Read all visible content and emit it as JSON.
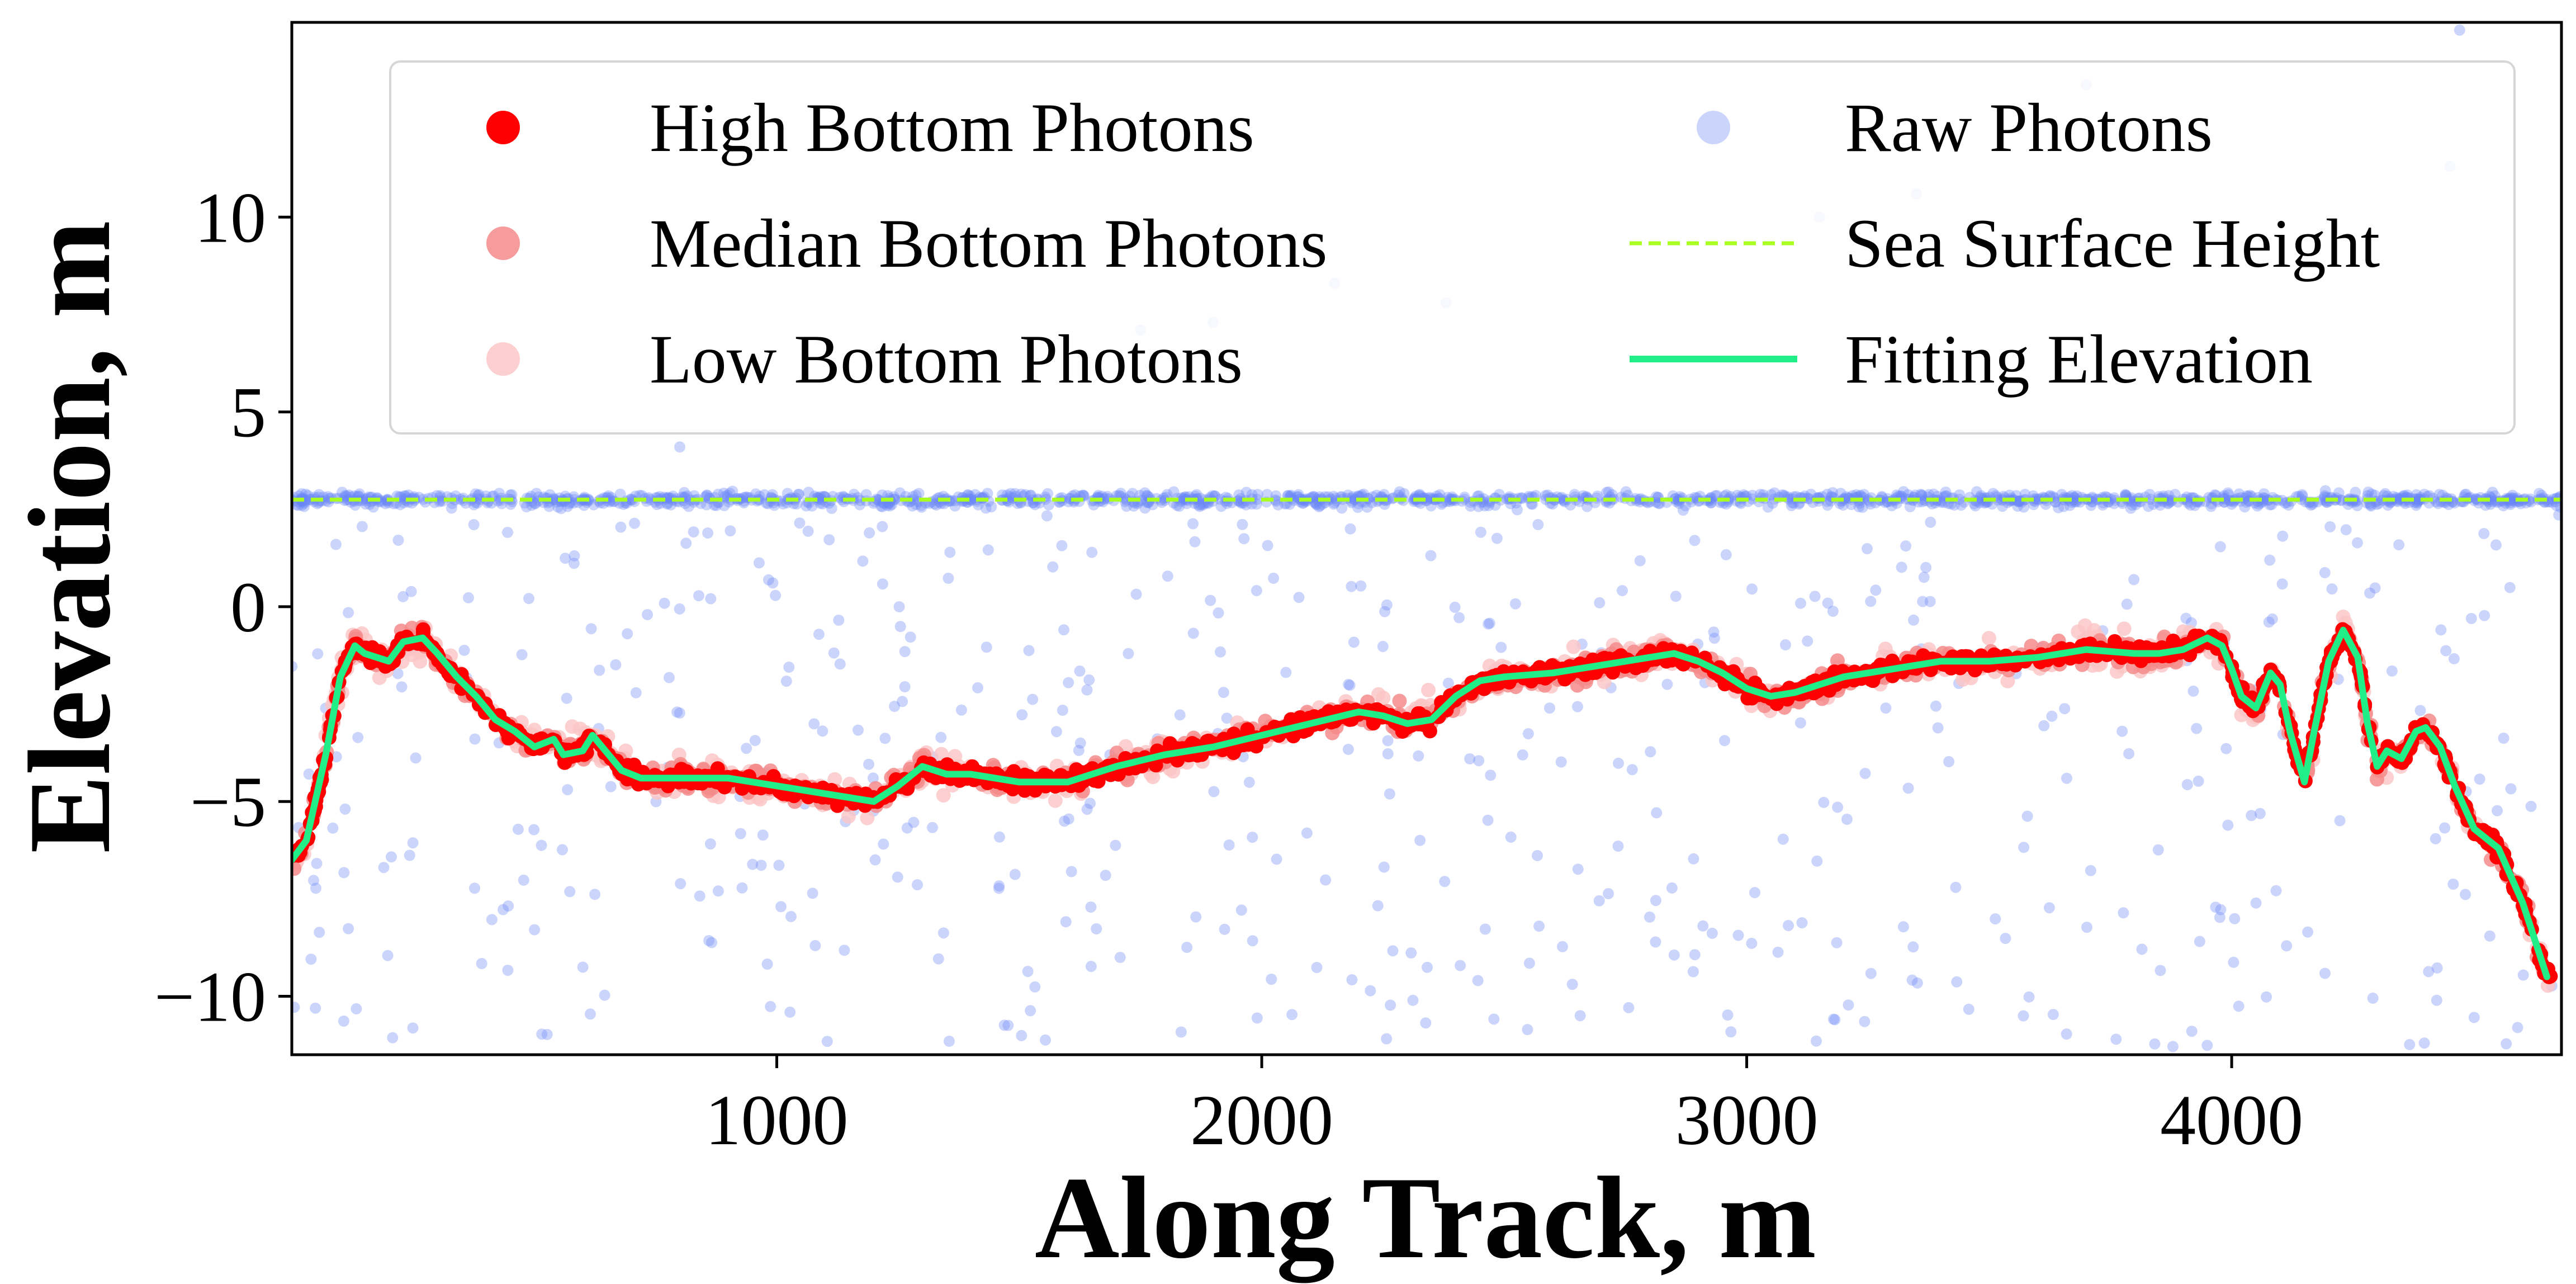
{
  "chart_data": {
    "type": "scatter",
    "xlabel": "Along Track, m",
    "ylabel": "Elevation, m",
    "xlim": [
      0,
      4680
    ],
    "ylim": [
      -11.5,
      15
    ],
    "xticks": [
      1000,
      2000,
      3000,
      4000
    ],
    "xtick_labels": [
      "1000",
      "2000",
      "3000",
      "4000"
    ],
    "yticks": [
      -10,
      -5,
      0,
      5,
      10
    ],
    "ytick_labels": [
      "−10",
      "−5",
      "0",
      "5",
      "10"
    ],
    "grid": false,
    "legend": {
      "placement": "top",
      "columns": 2
    },
    "colors": {
      "high": "#ff0000",
      "median": "#f58b8b",
      "low": "#fbc4c4",
      "raw": "#6b86f5",
      "sea": "#aaff22",
      "fit": "#22ee88"
    },
    "series": [
      {
        "key": "high",
        "name": "High Bottom Photons",
        "marker": "circle"
      },
      {
        "key": "median",
        "name": "Median Bottom Photons",
        "marker": "circle"
      },
      {
        "key": "low",
        "name": "Low Bottom Photons",
        "marker": "circle"
      },
      {
        "key": "raw",
        "name": "Raw Photons",
        "marker": "circle"
      },
      {
        "key": "sea",
        "name": "Sea Surface Height",
        "marker": "dashed-line",
        "y": 2.75
      },
      {
        "key": "fit",
        "name": "Fitting Elevation",
        "marker": "line",
        "x": [
          0,
          30,
          70,
          100,
          130,
          150,
          200,
          230,
          270,
          300,
          340,
          380,
          420,
          460,
          500,
          540,
          560,
          600,
          620,
          660,
          680,
          720,
          800,
          900,
          1000,
          1100,
          1150,
          1200,
          1250,
          1300,
          1350,
          1400,
          1450,
          1500,
          1550,
          1600,
          1650,
          1700,
          1800,
          1900,
          2000,
          2100,
          2200,
          2250,
          2300,
          2350,
          2400,
          2450,
          2500,
          2600,
          2700,
          2750,
          2800,
          2850,
          2900,
          2950,
          3000,
          3050,
          3100,
          3150,
          3200,
          3300,
          3400,
          3500,
          3600,
          3700,
          3800,
          3850,
          3900,
          3950,
          3980,
          4000,
          4020,
          4050,
          4080,
          4100,
          4120,
          4150,
          4170,
          4200,
          4230,
          4260,
          4280,
          4300,
          4320,
          4350,
          4380,
          4400,
          4430,
          4460,
          4500,
          4550,
          4600,
          4650
        ],
        "y": [
          -6.5,
          -6.0,
          -3.8,
          -1.8,
          -1.0,
          -1.2,
          -1.4,
          -0.9,
          -0.8,
          -1.2,
          -1.8,
          -2.3,
          -2.9,
          -3.2,
          -3.6,
          -3.4,
          -3.8,
          -3.7,
          -3.3,
          -3.9,
          -4.2,
          -4.4,
          -4.4,
          -4.4,
          -4.6,
          -4.8,
          -4.9,
          -5.0,
          -4.6,
          -4.1,
          -4.3,
          -4.3,
          -4.4,
          -4.5,
          -4.5,
          -4.5,
          -4.3,
          -4.1,
          -3.8,
          -3.6,
          -3.3,
          -3.0,
          -2.7,
          -2.8,
          -3.0,
          -2.9,
          -2.3,
          -1.9,
          -1.8,
          -1.7,
          -1.5,
          -1.4,
          -1.3,
          -1.2,
          -1.4,
          -1.7,
          -2.1,
          -2.3,
          -2.2,
          -2.0,
          -1.8,
          -1.6,
          -1.4,
          -1.4,
          -1.3,
          -1.1,
          -1.2,
          -1.2,
          -1.1,
          -0.8,
          -1.0,
          -1.6,
          -2.3,
          -2.6,
          -1.7,
          -2.0,
          -3.2,
          -4.5,
          -3.2,
          -1.4,
          -0.6,
          -1.3,
          -3.0,
          -4.1,
          -3.7,
          -3.9,
          -3.2,
          -3.1,
          -3.6,
          -4.6,
          -5.7,
          -6.2,
          -7.6,
          -9.5
        ]
      }
    ]
  }
}
